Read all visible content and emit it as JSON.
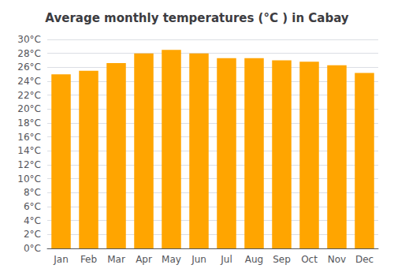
{
  "chart_data": {
    "type": "bar",
    "title": "Average monthly temperatures (°C ) in Cabay",
    "categories": [
      "Jan",
      "Feb",
      "Mar",
      "Apr",
      "May",
      "Jun",
      "Jul",
      "Aug",
      "Sep",
      "Oct",
      "Nov",
      "Dec"
    ],
    "values": [
      25.0,
      25.5,
      26.6,
      28.0,
      28.5,
      28.0,
      27.3,
      27.3,
      27.0,
      26.8,
      26.3,
      25.2
    ],
    "color": "#FFA500",
    "ylim": [
      0,
      30
    ],
    "yticks": [
      {
        "value": 0,
        "label": "0°C"
      },
      {
        "value": 2,
        "label": "2°C"
      },
      {
        "value": 4,
        "label": "4°C"
      },
      {
        "value": 6,
        "label": "6°C"
      },
      {
        "value": 8,
        "label": "8°C"
      },
      {
        "value": 10,
        "label": "10°C"
      },
      {
        "value": 12,
        "label": "12°C"
      },
      {
        "value": 14,
        "label": "14°C"
      },
      {
        "value": 16,
        "label": "16°C"
      },
      {
        "value": 18,
        "label": "18°C"
      },
      {
        "value": 20,
        "label": "20°C"
      },
      {
        "value": 22,
        "label": "22°C"
      },
      {
        "value": 24,
        "label": "24°C"
      },
      {
        "value": 26,
        "label": "26°C"
      },
      {
        "value": 28,
        "label": "28°C"
      },
      {
        "value": 30,
        "label": "30°C"
      }
    ],
    "grid": true
  }
}
